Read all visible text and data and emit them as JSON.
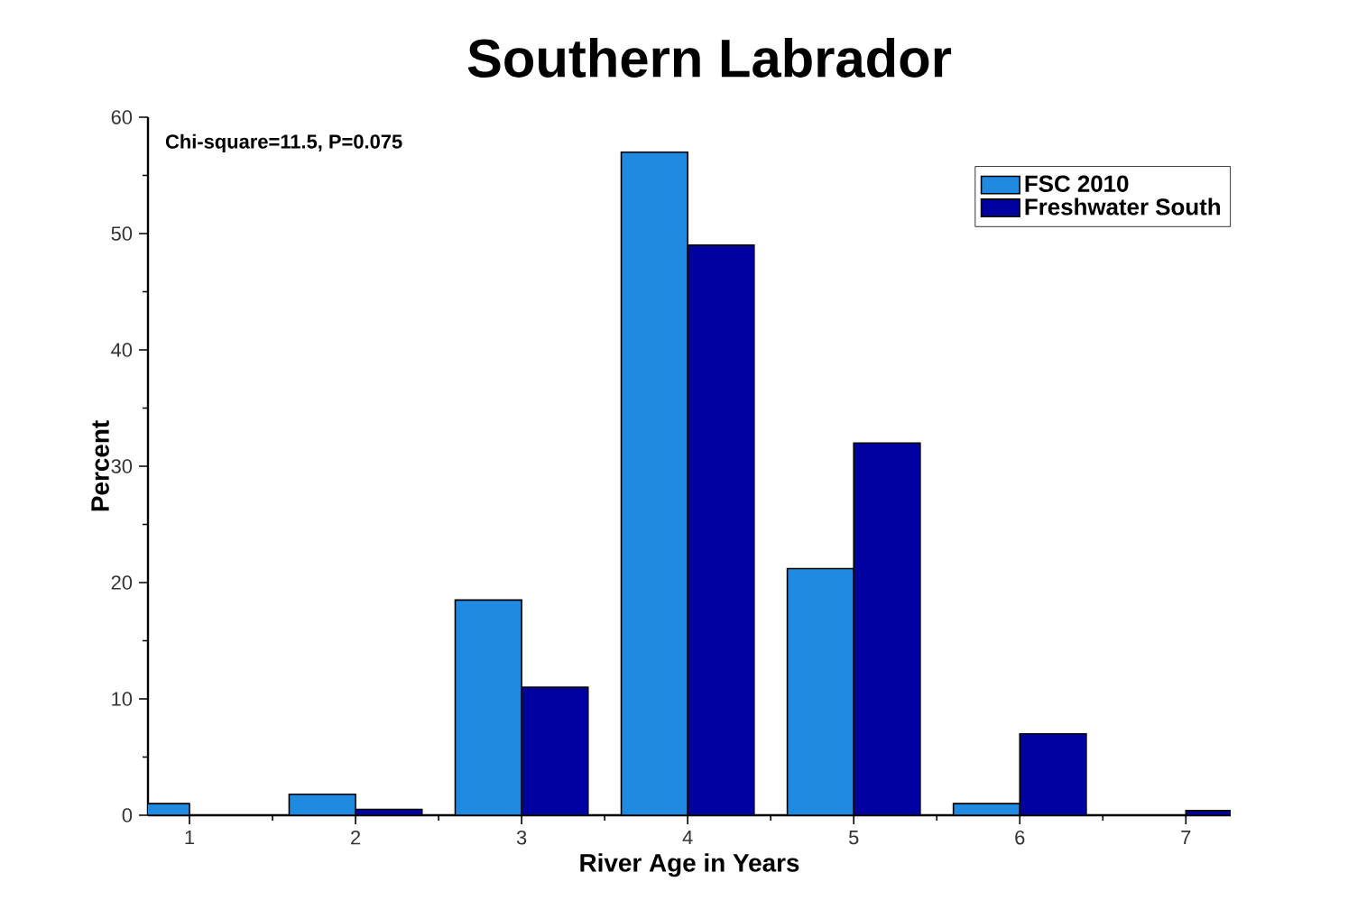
{
  "chart_data": {
    "type": "bar",
    "title": "Southern Labrador",
    "xlabel": "River Age in Years",
    "ylabel": "Percent",
    "x": [
      1,
      2,
      3,
      4,
      5,
      6,
      7
    ],
    "series": [
      {
        "name": "FSC 2010",
        "color": "#2089e0",
        "values": [
          1,
          1.8,
          18.5,
          57,
          21.2,
          1,
          0
        ]
      },
      {
        "name": "Freshwater South",
        "color": "#0000a0",
        "values": [
          0,
          0.5,
          11,
          49,
          32,
          7,
          0.4
        ]
      }
    ],
    "xlim": [
      0.75,
      7.27
    ],
    "xticks": [
      1,
      2,
      3,
      4,
      5,
      6,
      7
    ],
    "ylim": [
      0,
      60
    ],
    "yticks": [
      0,
      10,
      20,
      30,
      40,
      50,
      60
    ],
    "annotations": [
      "Chi-square=11.5, P=0.075"
    ],
    "legend": "top right",
    "grid": false
  }
}
